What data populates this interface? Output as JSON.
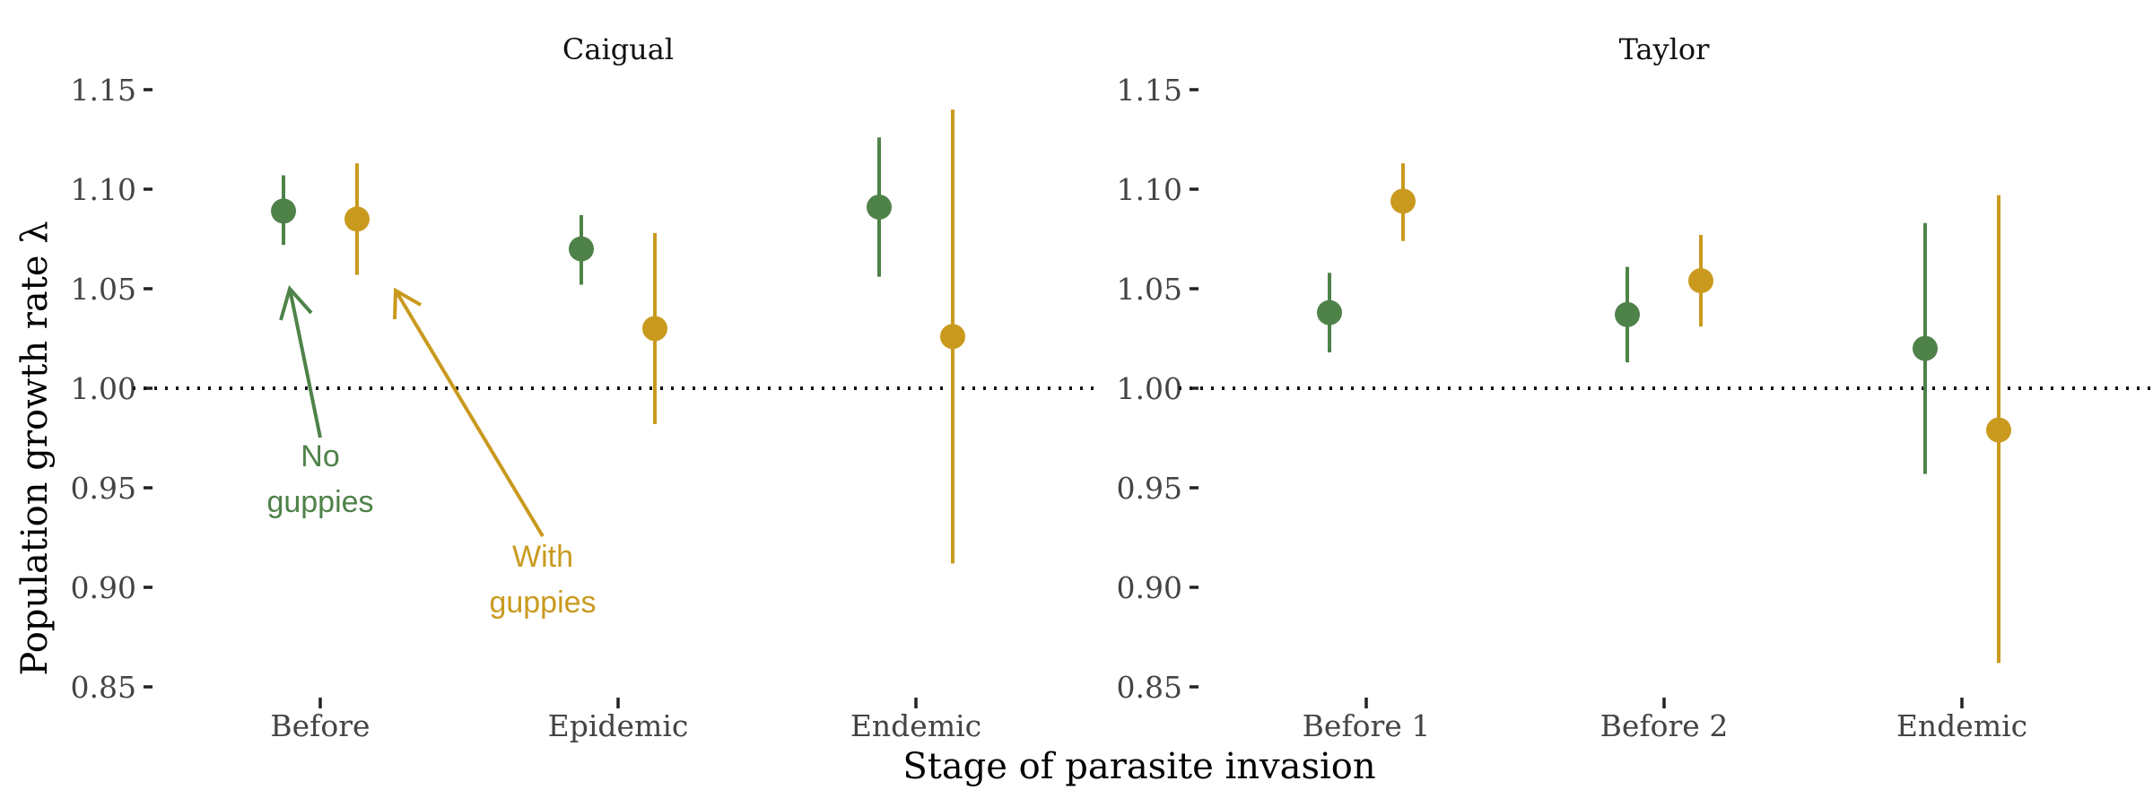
{
  "chart_data": {
    "type": "scatter",
    "title": "",
    "xlabel": "Stage of parasite invasion",
    "ylabel": "Population growth rate λ",
    "ylim": [
      0.85,
      1.15
    ],
    "yticks": [
      "0.85",
      "0.90",
      "0.95",
      "1.00",
      "1.05",
      "1.10",
      "1.15"
    ],
    "reference_line": {
      "y": 1.0,
      "style": "dotted"
    },
    "grid": false,
    "legend": "none",
    "colors": {
      "no_guppies": "#4e8249",
      "with_guppies": "#c99a1e"
    },
    "panels": [
      {
        "name": "Caigual",
        "categories": [
          "Before",
          "Epidemic",
          "Endemic"
        ],
        "series": [
          {
            "key": "no_guppies",
            "values": [
              1.089,
              1.07,
              1.091
            ],
            "lower": [
              1.072,
              1.052,
              1.056
            ],
            "upper": [
              1.107,
              1.087,
              1.126
            ]
          },
          {
            "key": "with_guppies",
            "values": [
              1.085,
              1.03,
              1.026
            ],
            "lower": [
              1.057,
              0.982,
              0.912
            ],
            "upper": [
              1.113,
              1.078,
              1.14
            ]
          }
        ]
      },
      {
        "name": "Taylor",
        "categories": [
          "Before 1",
          "Before 2",
          "Endemic"
        ],
        "series": [
          {
            "key": "no_guppies",
            "values": [
              1.038,
              1.037,
              1.02
            ],
            "lower": [
              1.018,
              1.013,
              0.957
            ],
            "upper": [
              1.058,
              1.061,
              1.083
            ]
          },
          {
            "key": "with_guppies",
            "values": [
              1.094,
              1.054,
              0.979
            ],
            "lower": [
              1.074,
              1.031,
              0.862
            ],
            "upper": [
              1.113,
              1.077,
              1.097
            ]
          }
        ]
      }
    ],
    "annotations": [
      {
        "key": "no_guppies",
        "lines": [
          "No",
          "guppies"
        ]
      },
      {
        "key": "with_guppies",
        "lines": [
          "With",
          "guppies"
        ]
      }
    ]
  }
}
